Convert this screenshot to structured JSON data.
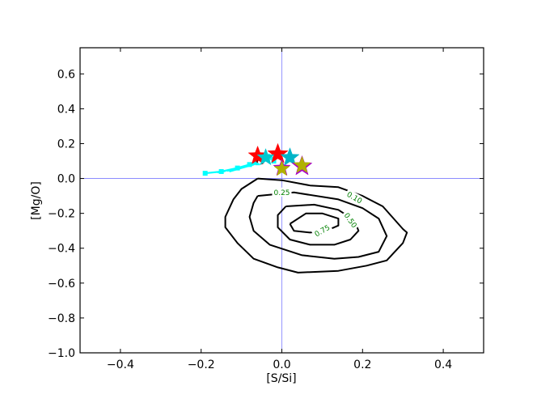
{
  "chart_data": {
    "type": "scatter",
    "title": "",
    "xlabel": "[S/Si]",
    "ylabel": "[Mg/O]",
    "xlim": [
      -0.5,
      0.5
    ],
    "ylim": [
      -1.0,
      0.75
    ],
    "xticks": [
      -0.4,
      -0.2,
      0.0,
      0.2,
      0.4
    ],
    "xtick_labels": [
      "−0.4",
      "−0.2",
      "0.0",
      "0.2",
      "0.4"
    ],
    "yticks": [
      -1.0,
      -0.8,
      -0.6,
      -0.4,
      -0.2,
      0.0,
      0.2,
      0.4,
      0.6
    ],
    "ytick_labels": [
      "−1.0",
      "−0.8",
      "−0.6",
      "−0.4",
      "−0.2",
      "0.0",
      "0.2",
      "0.4",
      "0.6"
    ],
    "grid": false,
    "reference_lines": {
      "x": 0.0,
      "y": 0.0,
      "color": "#7b7bff"
    },
    "contours": [
      {
        "level": "0.10",
        "label_at": [
          0.18,
          -0.11
        ],
        "points": [
          [
            -0.06,
            0.0
          ],
          [
            0.0,
            -0.01
          ],
          [
            0.07,
            -0.04
          ],
          [
            0.14,
            -0.05
          ],
          [
            0.2,
            -0.1
          ],
          [
            0.25,
            -0.16
          ],
          [
            0.3,
            -0.29
          ],
          [
            0.31,
            -0.31
          ],
          [
            0.3,
            -0.37
          ],
          [
            0.26,
            -0.47
          ],
          [
            0.21,
            -0.5
          ],
          [
            0.14,
            -0.53
          ],
          [
            0.04,
            -0.54
          ],
          [
            -0.01,
            -0.51
          ],
          [
            -0.07,
            -0.46
          ],
          [
            -0.11,
            -0.37
          ],
          [
            -0.14,
            -0.28
          ],
          [
            -0.14,
            -0.22
          ],
          [
            -0.12,
            -0.12
          ],
          [
            -0.1,
            -0.06
          ],
          [
            -0.06,
            0.0
          ]
        ]
      },
      {
        "level": "0.25",
        "label_at": [
          0.0,
          -0.08
        ],
        "points": [
          [
            -0.06,
            -0.1
          ],
          [
            0.03,
            -0.08
          ],
          [
            0.14,
            -0.12
          ],
          [
            0.2,
            -0.17
          ],
          [
            0.24,
            -0.23
          ],
          [
            0.26,
            -0.33
          ],
          [
            0.24,
            -0.42
          ],
          [
            0.19,
            -0.45
          ],
          [
            0.13,
            -0.46
          ],
          [
            0.05,
            -0.44
          ],
          [
            -0.03,
            -0.38
          ],
          [
            -0.07,
            -0.3
          ],
          [
            -0.08,
            -0.22
          ],
          [
            -0.07,
            -0.14
          ],
          [
            -0.06,
            -0.1
          ]
        ]
      },
      {
        "level": "0.50",
        "label_at": [
          0.17,
          -0.24
        ],
        "points": [
          [
            0.01,
            -0.16
          ],
          [
            0.08,
            -0.15
          ],
          [
            0.14,
            -0.18
          ],
          [
            0.18,
            -0.24
          ],
          [
            0.19,
            -0.3
          ],
          [
            0.17,
            -0.35
          ],
          [
            0.13,
            -0.38
          ],
          [
            0.07,
            -0.38
          ],
          [
            0.02,
            -0.35
          ],
          [
            -0.01,
            -0.28
          ],
          [
            -0.01,
            -0.21
          ],
          [
            0.01,
            -0.16
          ]
        ]
      },
      {
        "level": "0.75",
        "label_at": [
          0.1,
          -0.3
        ],
        "points": [
          [
            0.02,
            -0.26
          ],
          [
            0.06,
            -0.2
          ],
          [
            0.1,
            -0.2
          ],
          [
            0.14,
            -0.23
          ],
          [
            0.14,
            -0.27
          ],
          [
            0.11,
            -0.3
          ],
          [
            0.07,
            -0.31
          ],
          [
            0.03,
            -0.3
          ],
          [
            0.02,
            -0.26
          ]
        ]
      }
    ],
    "tracks": [
      {
        "color": "#00ffff",
        "points": [
          [
            -0.19,
            0.03
          ],
          [
            -0.15,
            0.04
          ],
          [
            -0.11,
            0.06
          ],
          [
            -0.08,
            0.08
          ],
          [
            -0.05,
            0.1
          ],
          [
            -0.02,
            0.12
          ]
        ]
      },
      {
        "color": "#00ffff",
        "points": [
          [
            -0.16,
            0.035
          ],
          [
            -0.12,
            0.05
          ],
          [
            -0.09,
            0.07
          ],
          [
            -0.06,
            0.09
          ],
          [
            -0.04,
            0.12
          ],
          [
            -0.03,
            0.14
          ]
        ]
      },
      {
        "color": "#00ffff",
        "points": [
          [
            -0.13,
            0.04
          ],
          [
            -0.1,
            0.06
          ],
          [
            -0.07,
            0.08
          ],
          [
            -0.05,
            0.11
          ],
          [
            -0.04,
            0.13
          ]
        ]
      },
      {
        "color": "#00ffff",
        "points": [
          [
            -0.07,
            0.09
          ],
          [
            -0.05,
            0.11
          ],
          [
            -0.04,
            0.12
          ],
          [
            -0.03,
            0.13
          ]
        ]
      }
    ],
    "track_markers": {
      "color": "#00ffff",
      "points": [
        [
          -0.19,
          0.03
        ],
        [
          -0.15,
          0.04
        ],
        [
          -0.11,
          0.06
        ],
        [
          -0.08,
          0.08
        ],
        [
          -0.06,
          0.09
        ],
        [
          -0.05,
          0.1
        ],
        [
          -0.03,
          0.12
        ],
        [
          -0.02,
          0.1
        ]
      ]
    },
    "minor_markers": [
      {
        "color": "#8b0000",
        "points": [
          [
            -0.06,
            0.1
          ],
          [
            -0.05,
            0.09
          ]
        ]
      },
      {
        "color": "#ffffff",
        "points": [
          [
            -0.055,
            0.095
          ]
        ]
      }
    ],
    "stars": [
      {
        "x": -0.06,
        "y": 0.13,
        "color": "#ff0000",
        "size": 12
      },
      {
        "x": -0.01,
        "y": 0.14,
        "color": "#ff0000",
        "size": 13
      },
      {
        "x": -0.04,
        "y": 0.12,
        "color": "#00c8d0",
        "size": 11
      },
      {
        "x": 0.02,
        "y": 0.12,
        "color": "#00b4c8",
        "size": 12
      },
      {
        "x": 0.05,
        "y": 0.07,
        "color": "#aa00cc",
        "size": 13
      },
      {
        "x": 0.0,
        "y": 0.06,
        "color": "#aa00cc",
        "size": 11
      },
      {
        "x": 0.05,
        "y": 0.075,
        "color": "#b0b000",
        "size": 11
      },
      {
        "x": 0.0,
        "y": 0.055,
        "color": "#b0b000",
        "size": 10
      }
    ],
    "colors": {
      "contour": "#000000",
      "contour_label": "#008000",
      "axis": "#000000"
    }
  }
}
